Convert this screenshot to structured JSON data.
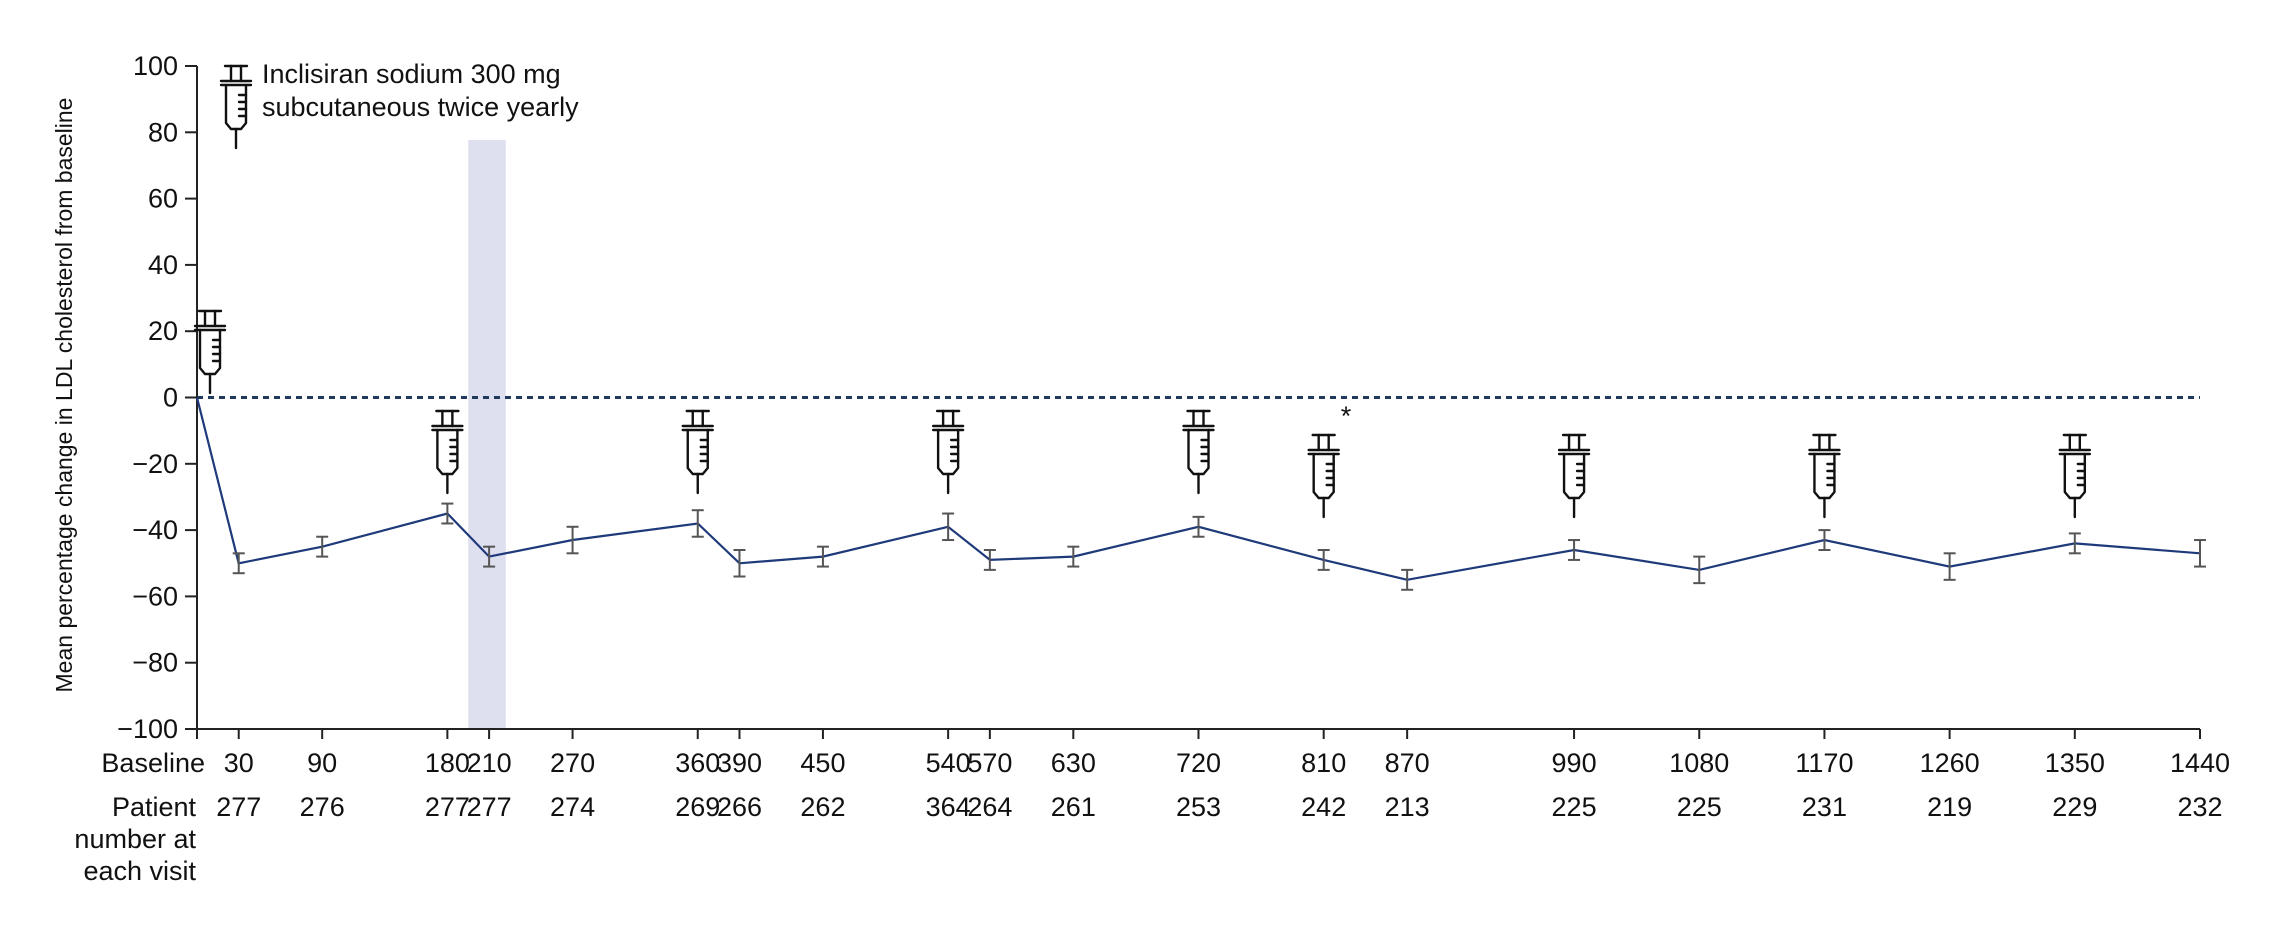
{
  "chart_data": {
    "type": "line",
    "ylabel": "Mean percentage change in LDL cholesterol from baseline",
    "ylim": [
      -100,
      100
    ],
    "yticks": [
      100,
      80,
      60,
      40,
      20,
      0,
      -20,
      -40,
      -60,
      -80,
      -100
    ],
    "xlim": [
      0,
      1440
    ],
    "x_tick_labels": [
      "Baseline",
      "30",
      "90",
      "180",
      "210",
      "270",
      "360",
      "390",
      "450",
      "540",
      "570",
      "630",
      "720",
      "810",
      "870",
      "990",
      "1080",
      "1170",
      "1260",
      "1350",
      "1440"
    ],
    "patient_row_label": [
      "Patient",
      "number at",
      "each visit"
    ],
    "patient_numbers": [
      {
        "x": 30,
        "n": "277"
      },
      {
        "x": 90,
        "n": "276"
      },
      {
        "x": 180,
        "n": "277"
      },
      {
        "x": 210,
        "n": "277"
      },
      {
        "x": 270,
        "n": "274"
      },
      {
        "x": 360,
        "n": "269"
      },
      {
        "x": 390,
        "n": "266"
      },
      {
        "x": 450,
        "n": "262"
      },
      {
        "x": 540,
        "n": "364"
      },
      {
        "x": 570,
        "n": "264"
      },
      {
        "x": 630,
        "n": "261"
      },
      {
        "x": 720,
        "n": "253"
      },
      {
        "x": 810,
        "n": "242"
      },
      {
        "x": 870,
        "n": "213"
      },
      {
        "x": 990,
        "n": "225"
      },
      {
        "x": 1080,
        "n": "225"
      },
      {
        "x": 1170,
        "n": "231"
      },
      {
        "x": 1260,
        "n": "219"
      },
      {
        "x": 1350,
        "n": "229"
      },
      {
        "x": 1440,
        "n": "232"
      }
    ],
    "series": [
      {
        "points": [
          {
            "x": 0,
            "y": 0
          },
          {
            "x": 30,
            "y": -50,
            "err": 3
          },
          {
            "x": 90,
            "y": -45,
            "err": 3
          },
          {
            "x": 180,
            "y": -35,
            "err": 3
          },
          {
            "x": 210,
            "y": -48,
            "err": 3
          },
          {
            "x": 270,
            "y": -43,
            "err": 4
          },
          {
            "x": 360,
            "y": -38,
            "err": 4
          },
          {
            "x": 390,
            "y": -50,
            "err": 4
          },
          {
            "x": 450,
            "y": -48,
            "err": 3
          },
          {
            "x": 540,
            "y": -39,
            "err": 4
          },
          {
            "x": 570,
            "y": -49,
            "err": 3
          },
          {
            "x": 630,
            "y": -48,
            "err": 3
          },
          {
            "x": 720,
            "y": -39,
            "err": 3
          },
          {
            "x": 810,
            "y": -49,
            "err": 3
          },
          {
            "x": 870,
            "y": -55,
            "err": 3
          },
          {
            "x": 990,
            "y": -46,
            "err": 3
          },
          {
            "x": 1080,
            "y": -52,
            "err": 4
          },
          {
            "x": 1170,
            "y": -43,
            "err": 3
          },
          {
            "x": 1260,
            "y": -51,
            "err": 4
          },
          {
            "x": 1350,
            "y": -44,
            "err": 3
          },
          {
            "x": 1440,
            "y": -47,
            "err": 4
          }
        ]
      }
    ],
    "reference_line_y": 0,
    "shaded_band_x": [
      195,
      222
    ],
    "injection_days": [
      0,
      180,
      360,
      540,
      720,
      810,
      990,
      1170,
      1350
    ],
    "asterisk_label": "*",
    "legend": {
      "line1": "Inclisiran sodium 300 mg",
      "line2": "subcutaneous twice yearly"
    },
    "colors": {
      "line": "#1f3a7a",
      "errorbar": "#555555",
      "reference": "#1f3a5a",
      "band": "#dedfef",
      "axis": "#222222"
    }
  }
}
